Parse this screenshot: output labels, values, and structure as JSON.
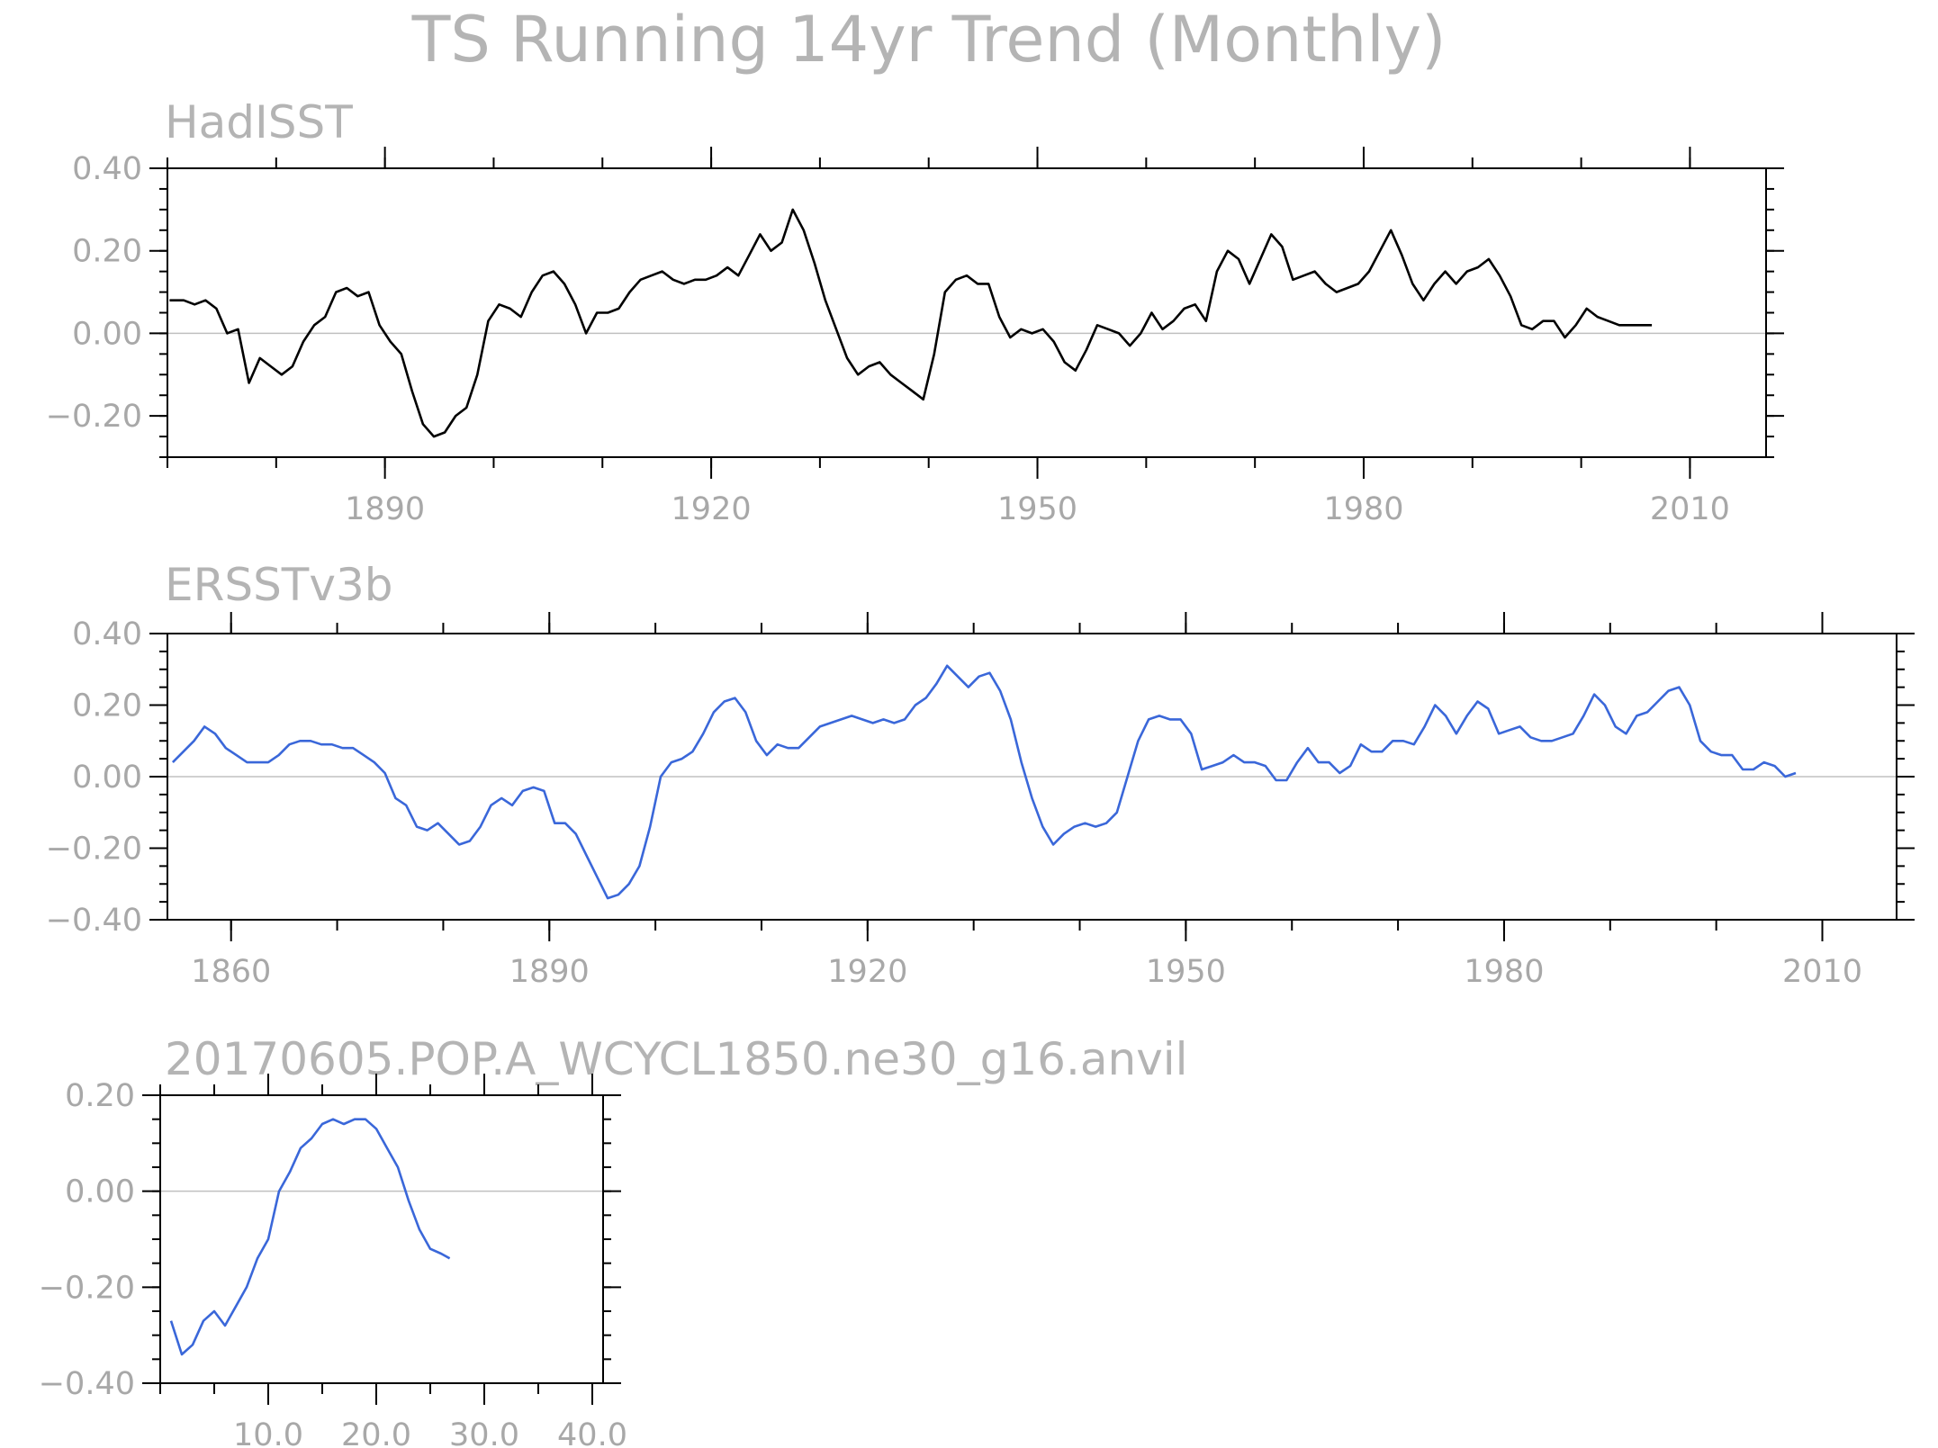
{
  "figure_title": "TS Running 14yr Trend (Monthly)",
  "colors": {
    "hadisst": "#000000",
    "ersst": "#3a67d9",
    "model": "#3a67d9",
    "text": "#b4b4b4"
  },
  "chart_data": [
    {
      "type": "line",
      "title": "HadISST",
      "xlim": [
        1870,
        2017
      ],
      "ylim": [
        -0.3,
        0.4
      ],
      "xticks": [
        1890,
        1920,
        1950,
        1980,
        2010
      ],
      "xtick_labels": [
        "1890",
        "1920",
        "1950",
        "1980",
        "2010"
      ],
      "yticks": [
        0.4,
        0.2,
        0.0,
        -0.2
      ],
      "ytick_labels": [
        "0.40",
        "0.20",
        "0.00",
        "−0.20"
      ],
      "series": [
        {
          "x": [
            1870.2,
            1871.5,
            1872.5,
            1873.5,
            1874.5,
            1875.5,
            1876.5,
            1877.5,
            1878.5,
            1879.5,
            1880.5,
            1881.5,
            1882.5,
            1883.5,
            1884.5,
            1885.5,
            1886.5,
            1887.5,
            1888.5,
            1889.5,
            1890.5,
            1891.5,
            1892.5,
            1893.5,
            1894.5,
            1895.5,
            1896.5,
            1897.5,
            1898.5,
            1899.5,
            1900.5,
            1901.5,
            1902.5,
            1903.5,
            1904.5,
            1905.5,
            1906.5,
            1907.5,
            1908.5,
            1909.5,
            1910.5,
            1911.5,
            1912.5,
            1913.5,
            1914.5,
            1915.5,
            1916.5,
            1917.5,
            1918.5,
            1919.5,
            1920.5,
            1921.5,
            1922.5,
            1923.5,
            1924.5,
            1925.5,
            1926.5,
            1927.5,
            1928.5,
            1929.5,
            1930.5,
            1931.5,
            1932.5,
            1933.5,
            1934.5,
            1935.5,
            1936.5,
            1937.5,
            1938.5,
            1939.5,
            1940.5,
            1941.5,
            1942.5,
            1943.5,
            1944.5,
            1945.5,
            1946.5,
            1947.5,
            1948.5,
            1949.5,
            1950.5,
            1951.5,
            1952.5,
            1953.5,
            1954.5,
            1955.5,
            1956.5,
            1957.5,
            1958.5,
            1959.5,
            1960.5,
            1961.5,
            1962.5,
            1963.5,
            1964.5,
            1965.5,
            1966.5,
            1967.5,
            1968.5,
            1969.5,
            1970.5,
            1971.5,
            1972.5,
            1973.5,
            1974.5,
            1975.5,
            1976.5,
            1977.5,
            1978.5,
            1979.5,
            1980.5,
            1981.5,
            1982.5,
            1983.5,
            1984.5,
            1985.5,
            1986.5,
            1987.5,
            1988.5,
            1989.5,
            1990.5,
            1991.5,
            1992.5,
            1993.5,
            1994.5,
            1995.5,
            1996.5,
            1997.5,
            1998.5,
            1999.5,
            2000.5,
            2001.5,
            2002.5,
            2003.5,
            2004.5,
            2005.5,
            2006.5
          ],
          "y": [
            0.08,
            0.08,
            0.07,
            0.08,
            0.06,
            0.0,
            0.01,
            -0.12,
            -0.06,
            -0.08,
            -0.1,
            -0.08,
            -0.02,
            0.02,
            0.04,
            0.1,
            0.11,
            0.09,
            0.1,
            0.02,
            -0.02,
            -0.05,
            -0.14,
            -0.22,
            -0.25,
            -0.24,
            -0.2,
            -0.18,
            -0.1,
            0.03,
            0.07,
            0.06,
            0.04,
            0.1,
            0.14,
            0.15,
            0.12,
            0.07,
            0.0,
            0.05,
            0.05,
            0.06,
            0.1,
            0.13,
            0.14,
            0.15,
            0.13,
            0.12,
            0.13,
            0.13,
            0.14,
            0.16,
            0.14,
            0.19,
            0.24,
            0.2,
            0.22,
            0.3,
            0.25,
            0.17,
            0.08,
            0.01,
            -0.06,
            -0.1,
            -0.08,
            -0.07,
            -0.1,
            -0.12,
            -0.14,
            -0.16,
            -0.05,
            0.1,
            0.13,
            0.14,
            0.12,
            0.12,
            0.04,
            -0.01,
            0.01,
            0.0,
            0.01,
            -0.02,
            -0.07,
            -0.09,
            -0.04,
            0.02,
            0.01,
            0.0,
            -0.03,
            0.0,
            0.05,
            0.01,
            0.03,
            0.06,
            0.07,
            0.03,
            0.15,
            0.2,
            0.18,
            0.12,
            0.18,
            0.24,
            0.21,
            0.13,
            0.14,
            0.15,
            0.12,
            0.1,
            0.11,
            0.12,
            0.15,
            0.2,
            0.25,
            0.19,
            0.12,
            0.08,
            0.12,
            0.15,
            0.12,
            0.15,
            0.16,
            0.18,
            0.14,
            0.09,
            0.02,
            0.01,
            0.03,
            0.03,
            -0.01,
            0.02,
            0.06,
            0.04,
            0.03,
            0.02,
            0.02,
            0.02,
            0.02
          ]
        }
      ]
    },
    {
      "type": "line",
      "title": "ERSSTv3b",
      "xlim": [
        1854,
        2017
      ],
      "ylim": [
        -0.4,
        0.4
      ],
      "xticks": [
        1860,
        1890,
        1920,
        1950,
        1980,
        2010
      ],
      "xtick_labels": [
        "1860",
        "1890",
        "1920",
        "1950",
        "1980",
        "2010"
      ],
      "yticks": [
        0.4,
        0.2,
        0.0,
        -0.2,
        -0.4
      ],
      "ytick_labels": [
        "0.40",
        "0.20",
        "0.00",
        "−0.20",
        "−0.40"
      ],
      "series": [
        {
          "x": [
            1854.5,
            1855.5,
            1856.5,
            1857.5,
            1858.5,
            1859.5,
            1860.5,
            1861.5,
            1862.5,
            1863.5,
            1864.5,
            1865.5,
            1866.5,
            1867.5,
            1868.5,
            1869.5,
            1870.5,
            1871.5,
            1872.5,
            1873.5,
            1874.5,
            1875.5,
            1876.5,
            1877.5,
            1878.5,
            1879.5,
            1880.5,
            1881.5,
            1882.5,
            1883.5,
            1884.5,
            1885.5,
            1886.5,
            1887.5,
            1888.5,
            1889.5,
            1890.5,
            1891.5,
            1892.5,
            1893.5,
            1894.5,
            1895.5,
            1896.5,
            1897.5,
            1898.5,
            1899.5,
            1900.5,
            1901.5,
            1902.5,
            1903.5,
            1904.5,
            1905.5,
            1906.5,
            1907.5,
            1908.5,
            1909.5,
            1910.5,
            1911.5,
            1912.5,
            1913.5,
            1914.5,
            1915.5,
            1916.5,
            1917.5,
            1918.5,
            1919.5,
            1920.5,
            1921.5,
            1922.5,
            1923.5,
            1924.5,
            1925.5,
            1926.5,
            1927.5,
            1928.5,
            1929.5,
            1930.5,
            1931.5,
            1932.5,
            1933.5,
            1934.5,
            1935.5,
            1936.5,
            1937.5,
            1938.5,
            1939.5,
            1940.5,
            1941.5,
            1942.5,
            1943.5,
            1944.5,
            1945.5,
            1946.5,
            1947.5,
            1948.5,
            1949.5,
            1950.5,
            1951.5,
            1952.5,
            1953.5,
            1954.5,
            1955.5,
            1956.5,
            1957.5,
            1958.5,
            1959.5,
            1960.5,
            1961.5,
            1962.5,
            1963.5,
            1964.5,
            1965.5,
            1966.5,
            1967.5,
            1968.5,
            1969.5,
            1970.5,
            1971.5,
            1972.5,
            1973.5,
            1974.5,
            1975.5,
            1976.5,
            1977.5,
            1978.5,
            1979.5,
            1980.5,
            1981.5,
            1982.5,
            1983.5,
            1984.5,
            1985.5,
            1986.5,
            1987.5,
            1988.5,
            1989.5,
            1990.5,
            1991.5,
            1992.5,
            1993.5,
            1994.5,
            1995.5,
            1996.5,
            1997.5,
            1998.5,
            1999.5,
            2000.5,
            2001.5,
            2002.5,
            2003.5,
            2004.5,
            2005.5,
            2006.5,
            2007.5
          ],
          "y": [
            0.04,
            0.07,
            0.1,
            0.14,
            0.12,
            0.08,
            0.06,
            0.04,
            0.04,
            0.04,
            0.06,
            0.09,
            0.1,
            0.1,
            0.09,
            0.09,
            0.08,
            0.08,
            0.06,
            0.04,
            0.01,
            -0.06,
            -0.08,
            -0.14,
            -0.15,
            -0.13,
            -0.16,
            -0.19,
            -0.18,
            -0.14,
            -0.08,
            -0.06,
            -0.08,
            -0.04,
            -0.03,
            -0.04,
            -0.13,
            -0.13,
            -0.16,
            -0.22,
            -0.28,
            -0.34,
            -0.33,
            -0.3,
            -0.25,
            -0.14,
            0.0,
            0.04,
            0.05,
            0.07,
            0.12,
            0.18,
            0.21,
            0.22,
            0.18,
            0.1,
            0.06,
            0.09,
            0.08,
            0.08,
            0.11,
            0.14,
            0.15,
            0.16,
            0.17,
            0.16,
            0.15,
            0.16,
            0.15,
            0.16,
            0.2,
            0.22,
            0.26,
            0.31,
            0.28,
            0.25,
            0.28,
            0.29,
            0.24,
            0.16,
            0.04,
            -0.06,
            -0.14,
            -0.19,
            -0.16,
            -0.14,
            -0.13,
            -0.14,
            -0.13,
            -0.1,
            0.0,
            0.1,
            0.16,
            0.17,
            0.16,
            0.16,
            0.12,
            0.02,
            0.03,
            0.04,
            0.06,
            0.04,
            0.04,
            0.03,
            -0.01,
            -0.01,
            0.04,
            0.08,
            0.04,
            0.04,
            0.01,
            0.03,
            0.09,
            0.07,
            0.07,
            0.1,
            0.1,
            0.09,
            0.14,
            0.2,
            0.17,
            0.12,
            0.17,
            0.21,
            0.19,
            0.12,
            0.13,
            0.14,
            0.11,
            0.1,
            0.1,
            0.11,
            0.12,
            0.17,
            0.23,
            0.2,
            0.14,
            0.12,
            0.17,
            0.18,
            0.21,
            0.24,
            0.25,
            0.2,
            0.1,
            0.07,
            0.06,
            0.06,
            0.02,
            0.02,
            0.04,
            0.03,
            0.0,
            0.01
          ]
        }
      ]
    },
    {
      "type": "line",
      "title": "20170605.POP.A_WCYCL1850.ne30_g16.anvil",
      "xlim": [
        0,
        41
      ],
      "ylim": [
        -0.4,
        0.2
      ],
      "xticks": [
        10,
        20,
        30,
        40
      ],
      "xtick_labels": [
        "10.0",
        "20.0",
        "30.0",
        "40.0"
      ],
      "yticks": [
        0.2,
        0.0,
        -0.2,
        -0.4
      ],
      "ytick_labels": [
        "0.20",
        "0.00",
        "−0.20",
        "−0.40"
      ],
      "series": [
        {
          "x": [
            1.0,
            2.0,
            3.0,
            4.0,
            5.0,
            6.0,
            7.0,
            8.0,
            9.0,
            10.0,
            11.0,
            12.0,
            13.0,
            14.0,
            15.0,
            16.0,
            17.0,
            18.0,
            19.0,
            20.0,
            21.0,
            22.0,
            23.0,
            24.0,
            25.0,
            26.0,
            26.8
          ],
          "y": [
            -0.27,
            -0.34,
            -0.32,
            -0.27,
            -0.25,
            -0.28,
            -0.24,
            -0.2,
            -0.14,
            -0.1,
            0.0,
            0.04,
            0.09,
            0.11,
            0.14,
            0.15,
            0.14,
            0.15,
            0.15,
            0.13,
            0.09,
            0.05,
            -0.02,
            -0.08,
            -0.12,
            -0.13,
            -0.14
          ]
        }
      ]
    }
  ]
}
